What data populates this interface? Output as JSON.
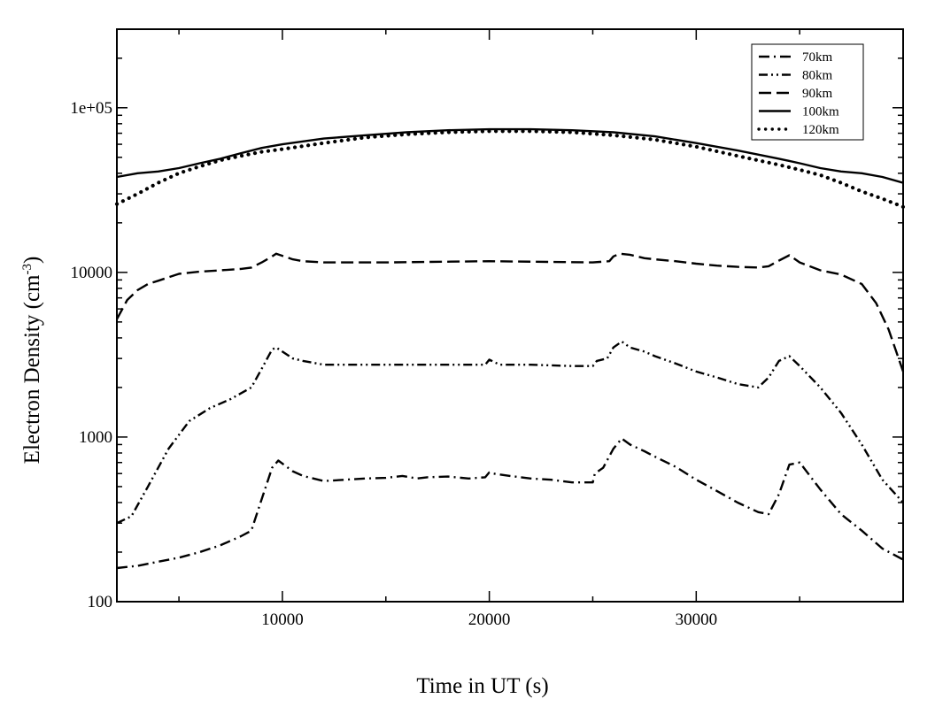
{
  "chart_data": {
    "type": "line",
    "title": "",
    "xlabel": "Time in UT (s)",
    "ylabel": {
      "main": "Electron Density (cm",
      "sup": "-3",
      "close": ")"
    },
    "xlim": [
      2000,
      40000
    ],
    "ylim": [
      100,
      300000
    ],
    "yscale": "log",
    "xticks": [
      10000,
      20000,
      30000
    ],
    "xtick_labels": [
      "10000",
      "20000",
      "30000"
    ],
    "yticks": [
      100,
      1000,
      10000,
      100000
    ],
    "ytick_labels": [
      "100",
      "1000",
      "10000",
      "1e+05"
    ],
    "legend_position": "top-right",
    "series": [
      {
        "name": "70km",
        "style": "dash-dot",
        "x": [
          2000,
          3000,
          4000,
          5000,
          6000,
          7000,
          8000,
          8500,
          9000,
          9500,
          9800,
          10500,
          11000,
          12000,
          13000,
          14000,
          15000,
          15800,
          16500,
          17000,
          18000,
          19000,
          19800,
          20000,
          20200,
          21000,
          22000,
          23000,
          24000,
          25000,
          25100,
          25500,
          26000,
          26400,
          26800,
          27500,
          28000,
          29000,
          30000,
          31000,
          32000,
          33000,
          33500,
          34000,
          34500,
          35000,
          36000,
          37000,
          38000,
          39000,
          40000
        ],
        "values": [
          160,
          165,
          175,
          185,
          200,
          220,
          250,
          270,
          420,
          650,
          720,
          620,
          580,
          540,
          550,
          560,
          565,
          580,
          560,
          570,
          575,
          560,
          570,
          610,
          600,
          580,
          560,
          550,
          530,
          530,
          600,
          650,
          850,
          980,
          900,
          820,
          760,
          660,
          550,
          470,
          400,
          350,
          340,
          450,
          680,
          700,
          480,
          340,
          270,
          210,
          180
        ]
      },
      {
        "name": "80km",
        "style": "dash-dot-dot",
        "x": [
          2000,
          2700,
          3500,
          4500,
          5500,
          6500,
          7500,
          8500,
          9000,
          9500,
          9700,
          10500,
          11000,
          12000,
          14000,
          16000,
          18000,
          19800,
          20000,
          20500,
          22000,
          24000,
          25000,
          25200,
          25700,
          26000,
          26400,
          26800,
          27500,
          28000,
          29000,
          30000,
          31000,
          32000,
          33000,
          33500,
          34000,
          34500,
          35000,
          36000,
          37000,
          38000,
          39000,
          40000
        ],
        "values": [
          300,
          330,
          500,
          850,
          1250,
          1500,
          1700,
          2000,
          2600,
          3400,
          3500,
          3000,
          2900,
          2750,
          2750,
          2750,
          2750,
          2750,
          2950,
          2750,
          2750,
          2700,
          2700,
          2900,
          3000,
          3500,
          3800,
          3500,
          3300,
          3100,
          2800,
          2500,
          2300,
          2100,
          2000,
          2300,
          2900,
          3100,
          2700,
          2000,
          1400,
          900,
          550,
          400
        ]
      },
      {
        "name": "90km",
        "style": "dashed",
        "x": [
          2000,
          2500,
          3000,
          3500,
          4000,
          5000,
          6000,
          7000,
          8000,
          8500,
          9000,
          9500,
          9700,
          10500,
          11000,
          12000,
          15000,
          20000,
          25000,
          25800,
          26000,
          26300,
          26800,
          27500,
          28000,
          29000,
          30000,
          31000,
          32000,
          33000,
          33500,
          34000,
          34500,
          35000,
          36000,
          37000,
          38000,
          38700,
          39300,
          40000
        ],
        "values": [
          5200,
          6800,
          7800,
          8500,
          8900,
          9800,
          10100,
          10300,
          10500,
          10700,
          11500,
          12500,
          13000,
          12000,
          11700,
          11500,
          11500,
          11700,
          11500,
          11700,
          12500,
          13000,
          12800,
          12200,
          12000,
          11700,
          11300,
          11000,
          10800,
          10700,
          10900,
          11800,
          12700,
          11500,
          10300,
          9700,
          8500,
          6500,
          4500,
          2500
        ]
      },
      {
        "name": "100km",
        "style": "solid",
        "x": [
          2000,
          3000,
          4000,
          5000,
          6000,
          7000,
          8000,
          9000,
          10000,
          12000,
          14000,
          16000,
          18000,
          20000,
          22000,
          24000,
          26000,
          28000,
          30000,
          32000,
          34000,
          35000,
          36000,
          37000,
          38000,
          39000,
          40000
        ],
        "values": [
          38000,
          40000,
          41000,
          43000,
          46000,
          49000,
          53000,
          57000,
          60000,
          65000,
          68000,
          71000,
          73000,
          74000,
          74000,
          73000,
          71000,
          67000,
          61000,
          55000,
          49000,
          46000,
          43000,
          41000,
          40000,
          38000,
          35000
        ]
      },
      {
        "name": "120km",
        "style": "dotted",
        "x": [
          2000,
          3000,
          4000,
          5000,
          6000,
          7000,
          8000,
          9000,
          10000,
          12000,
          14000,
          16000,
          18000,
          20000,
          22000,
          24000,
          26000,
          28000,
          30000,
          32000,
          34000,
          35000,
          36000,
          37000,
          38000,
          39000,
          40000
        ],
        "values": [
          26000,
          30000,
          35000,
          40000,
          44000,
          48000,
          51000,
          54000,
          56000,
          61000,
          66000,
          69000,
          71000,
          72000,
          72000,
          71000,
          68000,
          64000,
          58000,
          51000,
          45000,
          42000,
          39000,
          35000,
          31000,
          28000,
          25000
        ]
      }
    ]
  }
}
